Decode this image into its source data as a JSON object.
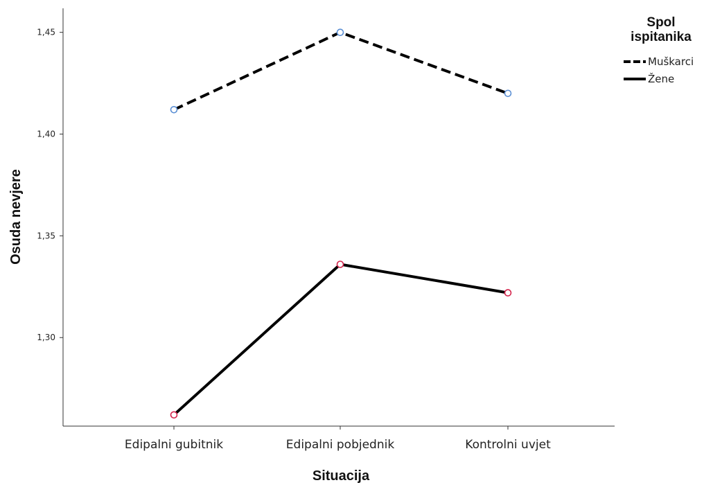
{
  "chart_data": {
    "type": "line",
    "xlabel": "Situacija",
    "ylabel": "Osuda nevjere",
    "categories": [
      "Edipalni gubitnik",
      "Edipalni pobjednik",
      "Kontrolni uvjet"
    ],
    "y_ticks": [
      "1,30",
      "1,35",
      "1,40",
      "1,45"
    ],
    "ylim": [
      1.2565,
      1.4618
    ],
    "grid": false,
    "legend": {
      "title_lines": [
        "Spol",
        "ispitanika"
      ],
      "placement": "top-right"
    },
    "series": [
      {
        "name": "Muškarci",
        "values": [
          1.412,
          1.45,
          1.42
        ],
        "line_style": "dashed",
        "color": "#000000",
        "marker_color": "#5b8fd4"
      },
      {
        "name": "Žene",
        "values": [
          1.262,
          1.336,
          1.322
        ],
        "line_style": "solid",
        "color": "#000000",
        "marker_color": "#d4234b"
      }
    ]
  }
}
